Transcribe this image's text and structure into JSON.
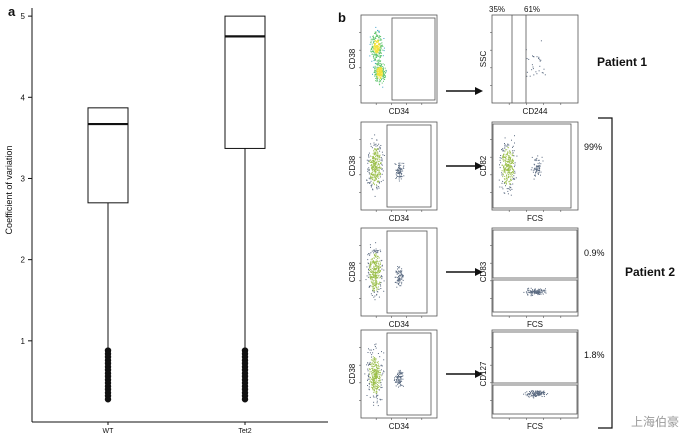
{
  "panel_a": {
    "label": "a",
    "chart_data": {
      "type": "box",
      "ylabel": "Coefficient of variation",
      "categories": [
        "WT",
        "Tet2"
      ],
      "ylim": [
        0,
        5.1
      ],
      "yticks": [
        1,
        2,
        3,
        4,
        5
      ],
      "boxes": [
        {
          "name": "WT",
          "q1": 2.7,
          "median": 3.67,
          "q3": 3.87,
          "whisker_low": 0.9,
          "outliers": [
            0.88,
            0.84,
            0.8,
            0.76,
            0.72,
            0.68,
            0.64,
            0.6,
            0.56,
            0.52,
            0.48,
            0.44,
            0.4,
            0.36,
            0.32,
            0.28
          ]
        },
        {
          "name": "Tet2",
          "q1": 3.37,
          "median": 4.75,
          "q3": 5.0,
          "whisker_low": 0.9,
          "outliers": [
            0.88,
            0.84,
            0.8,
            0.76,
            0.72,
            0.68,
            0.64,
            0.6,
            0.56,
            0.52,
            0.48,
            0.44,
            0.4,
            0.36,
            0.32,
            0.28
          ]
        }
      ]
    }
  },
  "panel_b": {
    "label": "b",
    "rows": [
      {
        "left": {
          "y": "CD38",
          "x": "CD34"
        },
        "right": {
          "y": "SSC",
          "x": "CD244",
          "pct_left": "35%",
          "pct_right": "61%"
        },
        "pct": ""
      },
      {
        "left": {
          "y": "CD38",
          "x": "CD34"
        },
        "right": {
          "y": "CD82",
          "x": "FCS"
        },
        "pct": "99%"
      },
      {
        "left": {
          "y": "CD38",
          "x": "CD34"
        },
        "right": {
          "y": "CD83",
          "x": "FCS"
        },
        "pct": "0.9%"
      },
      {
        "left": {
          "y": "CD38",
          "x": "CD34"
        },
        "right": {
          "y": "CD127",
          "x": "FCS"
        },
        "pct": "1.8%"
      }
    ],
    "patient1": "Patient 1",
    "patient2": "Patient 2"
  },
  "watermark": "上海伯豪"
}
